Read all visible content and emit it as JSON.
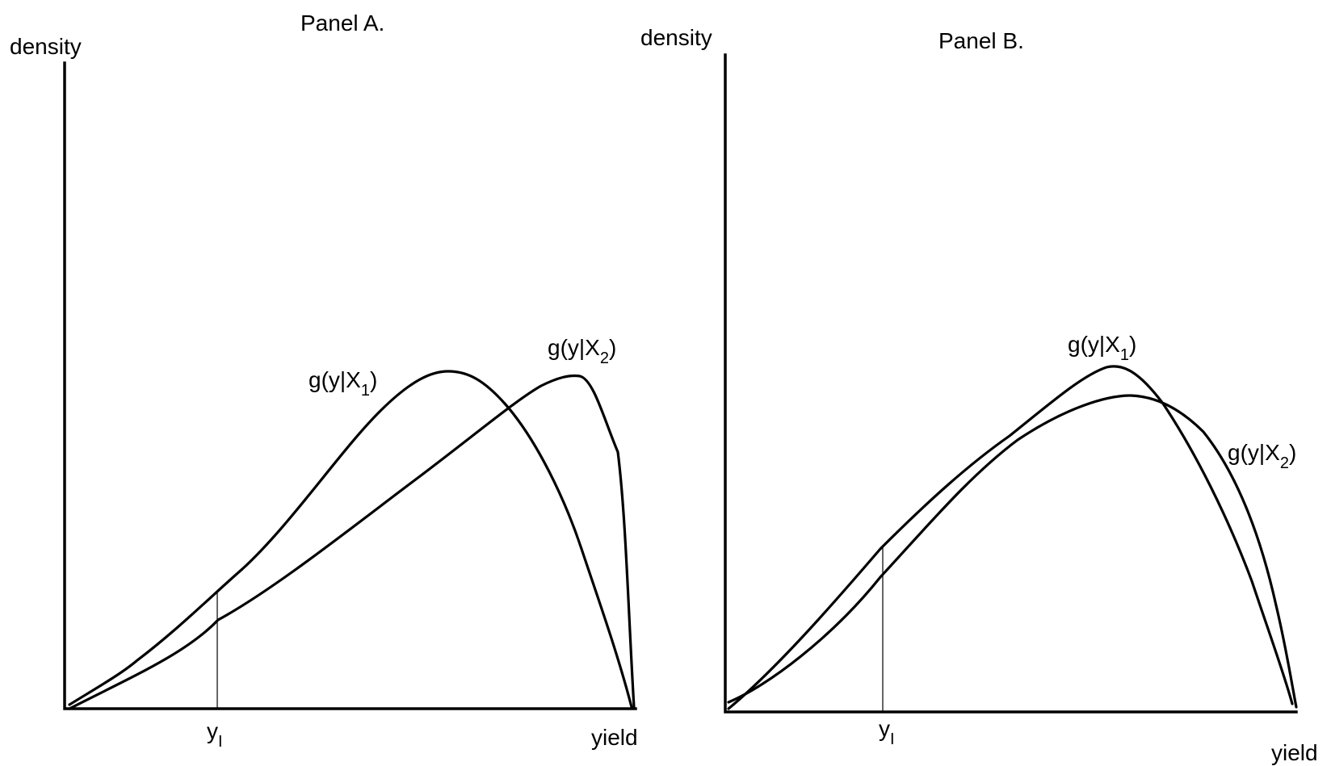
{
  "panels": [
    {
      "title": "Panel A.",
      "ylabel": "density",
      "xlabel": "yield",
      "marker": {
        "base": "y",
        "sub": "I"
      },
      "curves": [
        {
          "base": "g(y|X",
          "sub": "1",
          "close": ")"
        },
        {
          "base": "g(y|X",
          "sub": "2",
          "close": ")"
        }
      ]
    },
    {
      "title": "Panel B.",
      "ylabel": "density",
      "xlabel": "yield",
      "marker": {
        "base": "y",
        "sub": "I"
      },
      "curves": [
        {
          "base": "g(y|X",
          "sub": "1",
          "close": ")"
        },
        {
          "base": "g(y|X",
          "sub": "2",
          "close": ")"
        }
      ]
    }
  ]
}
